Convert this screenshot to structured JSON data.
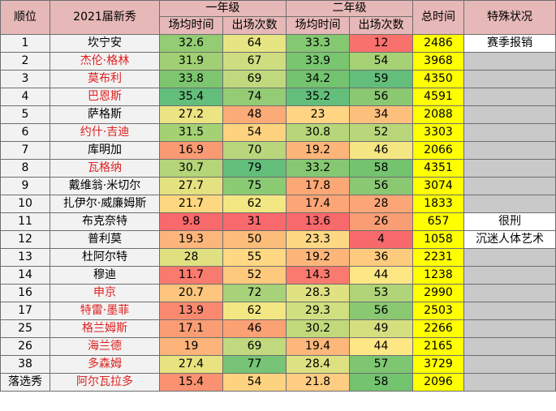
{
  "header": {
    "rank": "顺位",
    "rookie": "2021届新秀",
    "year1": "一年级",
    "year2": "二年级",
    "total": "总时间",
    "status": "特殊状况",
    "minutes": "场均时间",
    "games": "出场次数"
  },
  "colors": {
    "header_bg": "#e6b8b7",
    "total_bg": "#ffff00",
    "highlight_name": "#e02020",
    "status_empty": "#c9c9c9"
  },
  "rows": [
    {
      "rank": "1",
      "name": "坎宁安",
      "red": false,
      "y1m": "32.6",
      "y1m_bg": "#93cc72",
      "y1g": "64",
      "y1g_bg": "#e7e583",
      "y2m": "33.3",
      "y2m_bg": "#84c871",
      "y2g": "12",
      "y2g_bg": "#f8716d",
      "total": "2486",
      "status": "赛季报销",
      "status_empty": false
    },
    {
      "rank": "2",
      "name": "杰伦·格林",
      "red": true,
      "y1m": "31.9",
      "y1m_bg": "#a0d073",
      "y1g": "67",
      "y1g_bg": "#cedd80",
      "y2m": "33.9",
      "y2m_bg": "#79c570",
      "y2g": "54",
      "y2g_bg": "#a6d174",
      "total": "3968",
      "status": "",
      "status_empty": true
    },
    {
      "rank": "3",
      "name": "莫布利",
      "red": true,
      "y1m": "33.8",
      "y1m_bg": "#7dc66f",
      "y1g": "69",
      "y1g_bg": "#c1d97e",
      "y2m": "34.2",
      "y2m_bg": "#73c36f",
      "y2g": "59",
      "y2g_bg": "#63be7b",
      "total": "4350",
      "status": "",
      "status_empty": true
    },
    {
      "rank": "4",
      "name": "巴恩斯",
      "red": true,
      "y1m": "35.4",
      "y1m_bg": "#63be7b",
      "y1g": "74",
      "y1g_bg": "#94cc75",
      "y2m": "35.2",
      "y2m_bg": "#63be7b",
      "y2g": "56",
      "y2g_bg": "#8ac872",
      "total": "4591",
      "status": "",
      "status_empty": true
    },
    {
      "rank": "5",
      "name": "萨格斯",
      "red": false,
      "y1m": "27.2",
      "y1m_bg": "#ece382",
      "y1g": "48",
      "y1g_bg": "#fbab77",
      "y2m": "23",
      "y2m_bg": "#ffd584",
      "y2g": "34",
      "y2g_bg": "#fdc07c",
      "total": "2088",
      "status": "",
      "status_empty": true
    },
    {
      "rank": "6",
      "name": "约什·吉迪",
      "red": true,
      "y1m": "31.5",
      "y1m_bg": "#a5d175",
      "y1g": "54",
      "y1g_bg": "#fed380",
      "y2m": "30.8",
      "y2m_bg": "#b6d679",
      "y2g": "52",
      "y2g_bg": "#b9d77a",
      "total": "3303",
      "status": "",
      "status_empty": true
    },
    {
      "rank": "7",
      "name": "库明加",
      "red": false,
      "y1m": "16.9",
      "y1m_bg": "#fa9a73",
      "y1g": "70",
      "y1g_bg": "#b9d67c",
      "y2m": "19.2",
      "y2m_bg": "#fdb57a",
      "y2g": "46",
      "y2g_bg": "#f3e683",
      "total": "2066",
      "status": "",
      "status_empty": true
    },
    {
      "rank": "8",
      "name": "瓦格纳",
      "red": true,
      "y1m": "30.7",
      "y1m_bg": "#b4d578",
      "y1g": "79",
      "y1g_bg": "#63be7b",
      "y2m": "33.2",
      "y2m_bg": "#86c871",
      "y2g": "58",
      "y2g_bg": "#73c36f",
      "total": "4351",
      "status": "",
      "status_empty": true
    },
    {
      "rank": "9",
      "name": "戴维翁·米切尔",
      "red": false,
      "y1m": "27.7",
      "y1m_bg": "#e4e181",
      "y1g": "75",
      "y1g_bg": "#8acb74",
      "y2m": "17.8",
      "y2m_bg": "#fca876",
      "y2g": "56",
      "y2g_bg": "#8ac872",
      "total": "3074",
      "status": "",
      "status_empty": true
    },
    {
      "rank": "10",
      "name": "扎伊尔·威廉姆斯",
      "red": false,
      "y1m": "21.7",
      "y1m_bg": "#fed880",
      "y1g": "62",
      "y1g_bg": "#f3e784",
      "y2m": "17.4",
      "y2m_bg": "#fca576",
      "y2g": "28",
      "y2g_bg": "#fba677",
      "total": "1833",
      "status": "",
      "status_empty": true
    },
    {
      "rank": "11",
      "name": "布克奈特",
      "red": false,
      "y1m": "9.8",
      "y1m_bg": "#f8696b",
      "y1g": "31",
      "y1g_bg": "#f8696b",
      "y2m": "13.6",
      "y2m_bg": "#f8696b",
      "y2g": "26",
      "y2g_bg": "#f99d74",
      "total": "657",
      "status": "很刑",
      "status_empty": false
    },
    {
      "rank": "12",
      "name": "普利莫",
      "red": false,
      "y1m": "19.3",
      "y1m_bg": "#fcb67b",
      "y1g": "50",
      "y1g_bg": "#fcbd7a",
      "y2m": "23.3",
      "y2m_bg": "#ffd884",
      "y2g": "4",
      "y2g_bg": "#f8696b",
      "total": "1058",
      "status": "沉迷人体艺术",
      "status_empty": false
    },
    {
      "rank": "13",
      "name": "杜阿尔特",
      "red": false,
      "y1m": "28",
      "y1m_bg": "#e0e081",
      "y1g": "55",
      "y1g_bg": "#fed882",
      "y2m": "19.2",
      "y2m_bg": "#fdb57a",
      "y2g": "36",
      "y2g_bg": "#fdcb7e",
      "total": "2231",
      "status": "",
      "status_empty": true
    },
    {
      "rank": "14",
      "name": "穆迪",
      "red": false,
      "y1m": "11.7",
      "y1m_bg": "#f97a6e",
      "y1g": "52",
      "y1g_bg": "#fdc97d",
      "y2m": "14.3",
      "y2m_bg": "#f97a6e",
      "y2g": "44",
      "y2g_bg": "#fde784",
      "total": "1238",
      "status": "",
      "status_empty": true
    },
    {
      "rank": "16",
      "name": "申京",
      "red": true,
      "y1m": "20.7",
      "y1m_bg": "#fdc57e",
      "y1g": "72",
      "y1g_bg": "#a7d279",
      "y2m": "28.3",
      "y2m_bg": "#e0e282",
      "y2g": "53",
      "y2g_bg": "#b0d477",
      "total": "2990",
      "status": "",
      "status_empty": true
    },
    {
      "rank": "17",
      "name": "特雷·墨菲",
      "red": true,
      "y1m": "13.9",
      "y1m_bg": "#f98a70",
      "y1g": "62",
      "y1g_bg": "#f3e784",
      "y2m": "29.3",
      "y2m_bg": "#d0df7f",
      "y2g": "56",
      "y2g_bg": "#8ac872",
      "total": "2503",
      "status": "",
      "status_empty": true
    },
    {
      "rank": "25",
      "name": "格兰姆斯",
      "red": true,
      "y1m": "17.1",
      "y1m_bg": "#fb9d74",
      "y1g": "46",
      "y1g_bg": "#fba275",
      "y2m": "30.2",
      "y2m_bg": "#c1d97b",
      "y2g": "49",
      "y2g_bg": "#d6df80",
      "total": "2266",
      "status": "",
      "status_empty": true
    },
    {
      "rank": "26",
      "name": "海兰德",
      "red": true,
      "y1m": "19",
      "y1m_bg": "#fcb47a",
      "y1g": "69",
      "y1g_bg": "#c1d97e",
      "y2m": "19.4",
      "y2m_bg": "#fdb77a",
      "y2g": "44",
      "y2g_bg": "#fde784",
      "total": "2165",
      "status": "",
      "status_empty": true
    },
    {
      "rank": "38",
      "name": "多森姆",
      "red": true,
      "y1m": "27.4",
      "y1m_bg": "#e8e281",
      "y1g": "77",
      "y1g_bg": "#77c477",
      "y2m": "28.4",
      "y2m_bg": "#dee181",
      "y2g": "57",
      "y2g_bg": "#7ec671",
      "total": "3729",
      "status": "",
      "status_empty": true
    },
    {
      "rank": "落选秀",
      "name": "阿尔瓦拉多",
      "red": true,
      "y1m": "15.4",
      "y1m_bg": "#fa9272",
      "y1g": "54",
      "y1g_bg": "#fed380",
      "y2m": "21.8",
      "y2m_bg": "#fecc82",
      "y2g": "58",
      "y2g_bg": "#73c36f",
      "total": "2096",
      "status": "",
      "status_empty": true
    }
  ]
}
